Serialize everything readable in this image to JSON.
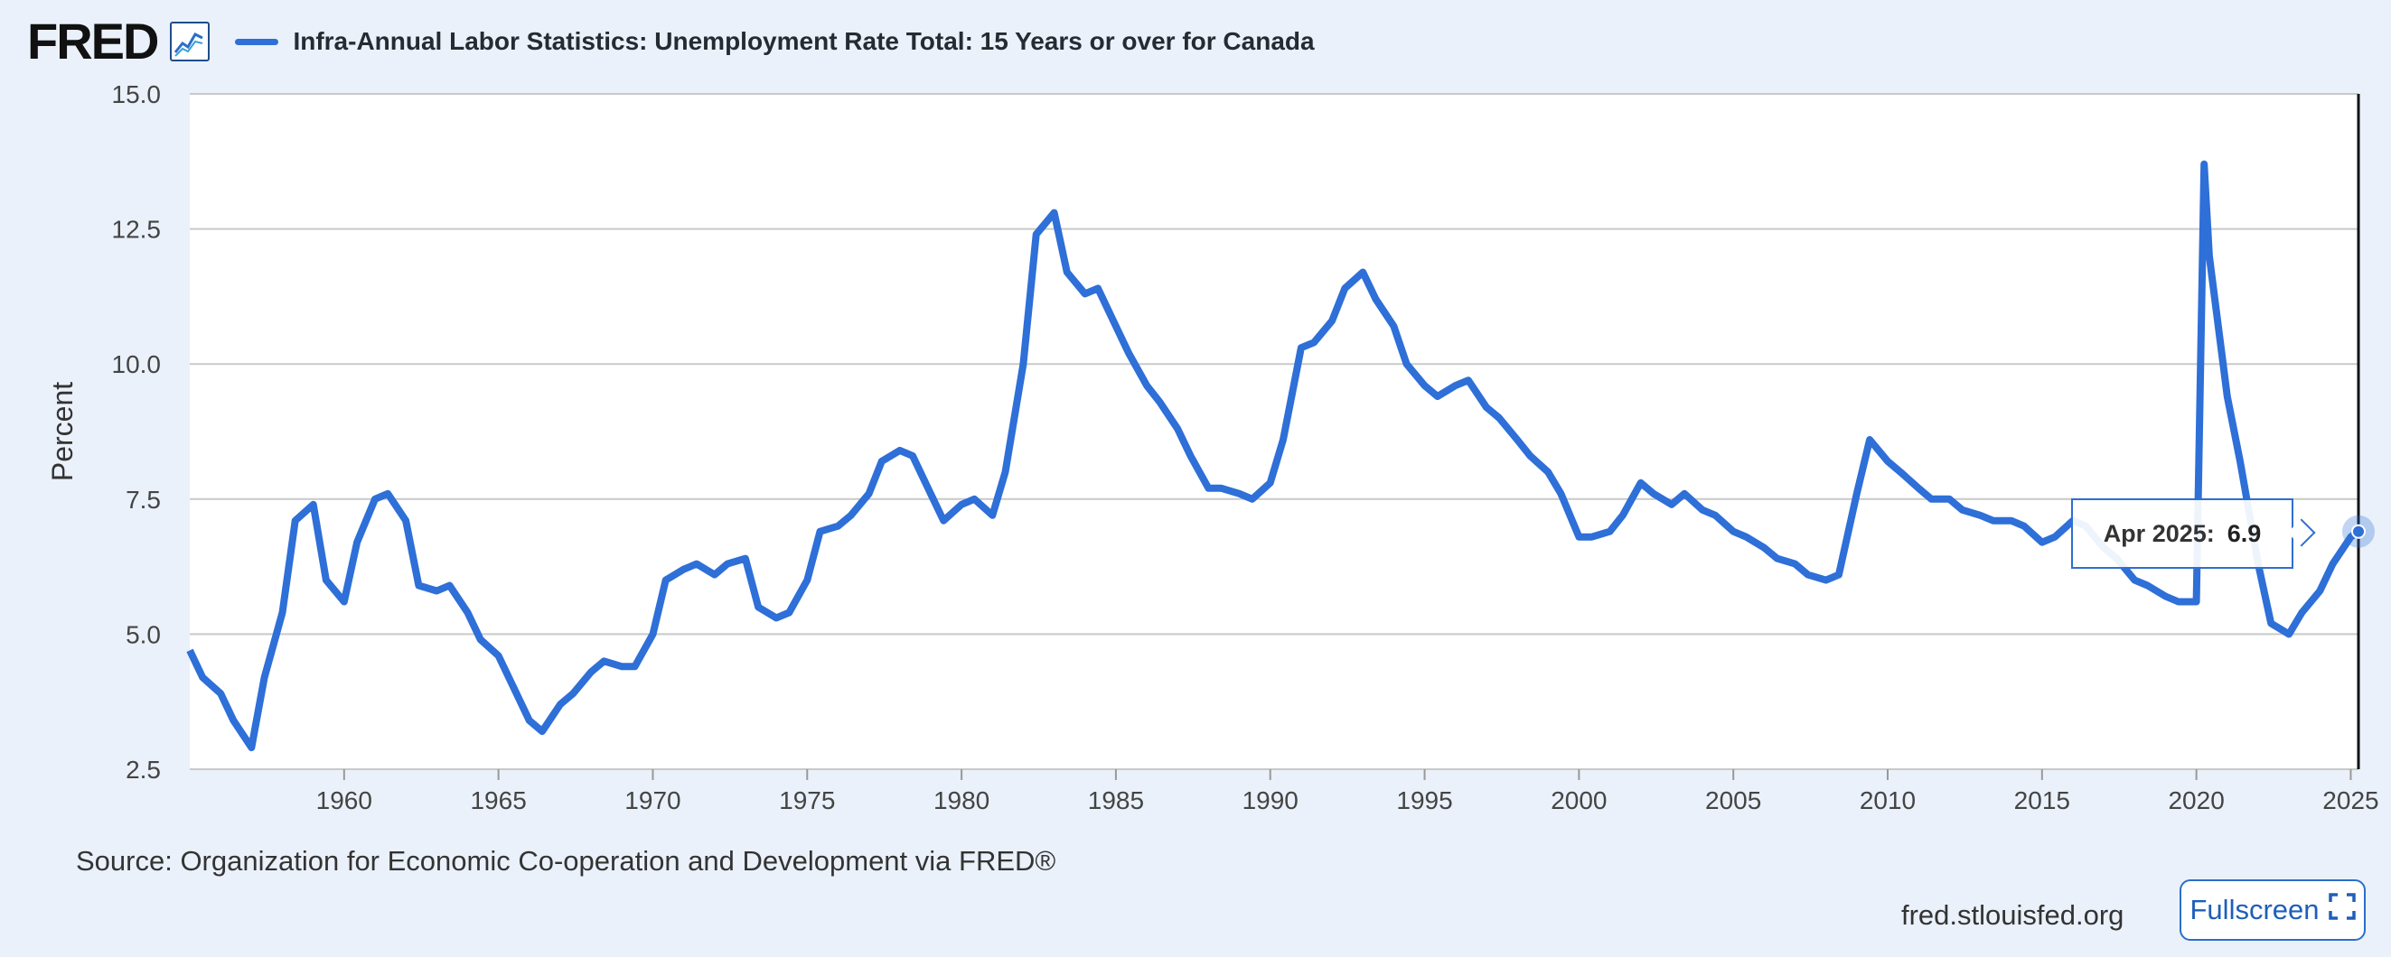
{
  "header": {
    "logo_text": "FRED",
    "series_title": "Infra-Annual Labor Statistics: Unemployment Rate Total: 15 Years or over for Canada"
  },
  "colors": {
    "background": "#eaf1fa",
    "plot_background": "#ffffff",
    "series_line": "#2e6fd8",
    "grid": "#c9c9c9",
    "accent": "#1e5fb8"
  },
  "icons": [
    "fred-graph-icon",
    "fullscreen-icon"
  ],
  "chart_data": {
    "type": "line",
    "title": "Infra-Annual Labor Statistics: Unemployment Rate Total: 15 Years or over for Canada",
    "xlabel": "",
    "ylabel": "Percent",
    "xlim": [
      "1955-01",
      "2025-04"
    ],
    "ylim": [
      2.5,
      15.0
    ],
    "yticks": [
      "2.5",
      "5.0",
      "7.5",
      "10.0",
      "12.5",
      "15.0"
    ],
    "xticks": [
      "1960",
      "1965",
      "1970",
      "1975",
      "1980",
      "1985",
      "1990",
      "1995",
      "2000",
      "2005",
      "2010",
      "2015",
      "2020",
      "2025"
    ],
    "grid": "horizontal",
    "series": [
      {
        "name": "Infra-Annual Labor Statistics: Unemployment Rate Total: 15 Years or over for Canada",
        "x": [
          "1955-01",
          "1955-06",
          "1956-01",
          "1956-06",
          "1957-01",
          "1957-06",
          "1958-01",
          "1958-06",
          "1959-01",
          "1959-06",
          "1960-01",
          "1960-06",
          "1961-01",
          "1961-06",
          "1962-01",
          "1962-06",
          "1963-01",
          "1963-06",
          "1964-01",
          "1964-06",
          "1965-01",
          "1965-06",
          "1966-01",
          "1966-06",
          "1967-01",
          "1967-06",
          "1968-01",
          "1968-06",
          "1969-01",
          "1969-06",
          "1970-01",
          "1970-06",
          "1971-01",
          "1971-06",
          "1972-01",
          "1972-06",
          "1973-01",
          "1973-06",
          "1974-01",
          "1974-06",
          "1975-01",
          "1975-06",
          "1976-01",
          "1976-06",
          "1977-01",
          "1977-06",
          "1978-01",
          "1978-06",
          "1979-01",
          "1979-06",
          "1980-01",
          "1980-06",
          "1981-01",
          "1981-06",
          "1982-01",
          "1982-06",
          "1983-01",
          "1983-06",
          "1984-01",
          "1984-06",
          "1985-01",
          "1985-06",
          "1986-01",
          "1986-06",
          "1987-01",
          "1987-06",
          "1988-01",
          "1988-06",
          "1989-01",
          "1989-06",
          "1990-01",
          "1990-06",
          "1991-01",
          "1991-06",
          "1992-01",
          "1992-06",
          "1993-01",
          "1993-06",
          "1994-01",
          "1994-06",
          "1995-01",
          "1995-06",
          "1996-01",
          "1996-06",
          "1997-01",
          "1997-06",
          "1998-01",
          "1998-06",
          "1999-01",
          "1999-06",
          "2000-01",
          "2000-06",
          "2001-01",
          "2001-06",
          "2002-01",
          "2002-06",
          "2003-01",
          "2003-06",
          "2004-01",
          "2004-06",
          "2005-01",
          "2005-06",
          "2006-01",
          "2006-06",
          "2007-01",
          "2007-06",
          "2008-01",
          "2008-06",
          "2009-01",
          "2009-06",
          "2010-01",
          "2010-06",
          "2011-01",
          "2011-06",
          "2012-01",
          "2012-06",
          "2013-01",
          "2013-06",
          "2014-01",
          "2014-06",
          "2015-01",
          "2015-06",
          "2016-01",
          "2016-06",
          "2017-01",
          "2017-06",
          "2018-01",
          "2018-06",
          "2019-01",
          "2019-06",
          "2020-01",
          "2020-04",
          "2020-06",
          "2021-01",
          "2021-06",
          "2022-01",
          "2022-06",
          "2023-01",
          "2023-06",
          "2024-01",
          "2024-06",
          "2025-01",
          "2025-04"
        ],
        "y": [
          4.7,
          4.2,
          3.9,
          3.4,
          2.9,
          4.2,
          5.4,
          7.1,
          7.4,
          6.0,
          5.6,
          6.7,
          7.5,
          7.6,
          7.1,
          5.9,
          5.8,
          5.9,
          5.4,
          4.9,
          4.6,
          4.1,
          3.4,
          3.2,
          3.7,
          3.9,
          4.3,
          4.5,
          4.4,
          4.4,
          5.0,
          6.0,
          6.2,
          6.3,
          6.1,
          6.3,
          6.4,
          5.5,
          5.3,
          5.4,
          6.0,
          6.9,
          7.0,
          7.2,
          7.6,
          8.2,
          8.4,
          8.3,
          7.6,
          7.1,
          7.4,
          7.5,
          7.2,
          8.0,
          10.0,
          12.4,
          12.8,
          11.7,
          11.3,
          11.4,
          10.7,
          10.2,
          9.6,
          9.3,
          8.8,
          8.3,
          7.7,
          7.7,
          7.6,
          7.5,
          7.8,
          8.6,
          10.3,
          10.4,
          10.8,
          11.4,
          11.7,
          11.2,
          10.7,
          10.0,
          9.6,
          9.4,
          9.6,
          9.7,
          9.2,
          9.0,
          8.6,
          8.3,
          8.0,
          7.6,
          6.8,
          6.8,
          6.9,
          7.2,
          7.8,
          7.6,
          7.4,
          7.6,
          7.3,
          7.2,
          6.9,
          6.8,
          6.6,
          6.4,
          6.3,
          6.1,
          6.0,
          6.1,
          7.6,
          8.6,
          8.2,
          8.0,
          7.7,
          7.5,
          7.5,
          7.3,
          7.2,
          7.1,
          7.1,
          7.0,
          6.7,
          6.8,
          7.1,
          7.0,
          6.6,
          6.4,
          6.0,
          5.9,
          5.7,
          5.6,
          5.6,
          13.7,
          12.0,
          9.4,
          8.2,
          6.3,
          5.2,
          5.0,
          5.4,
          5.8,
          6.3,
          6.8,
          6.9
        ]
      }
    ],
    "highlight": {
      "label": "Apr 2025:",
      "value": "6.9",
      "x": "2025-04",
      "y": 6.9
    }
  },
  "footer": {
    "source": "Source: Organization for Economic Co-operation and Development via FRED®",
    "site": "fred.stlouisfed.org",
    "fullscreen_label": "Fullscreen"
  }
}
